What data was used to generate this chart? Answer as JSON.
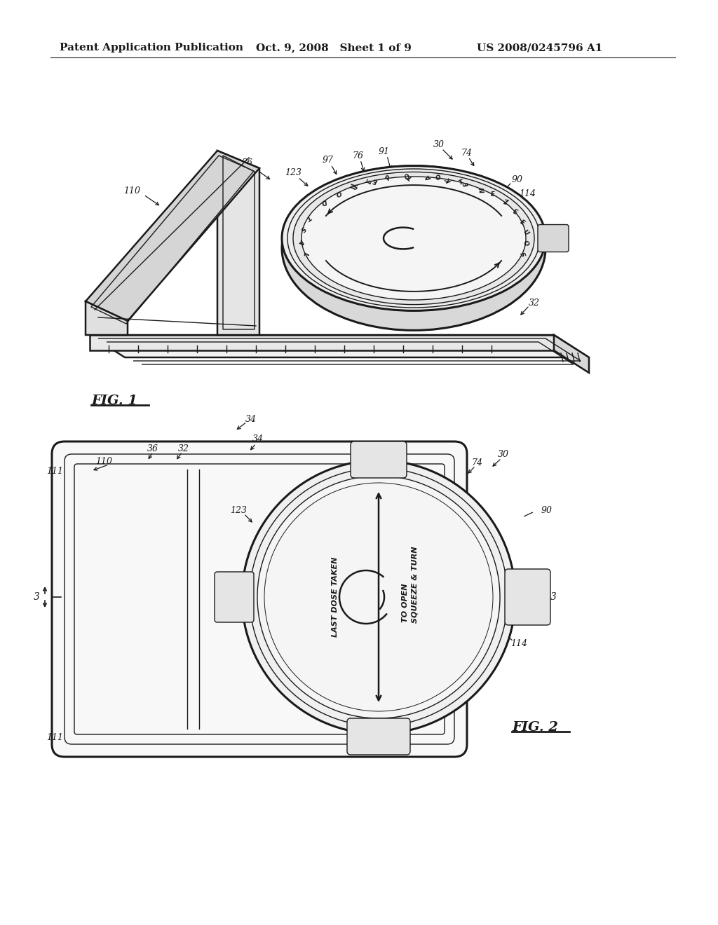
{
  "bg_color": "#ffffff",
  "line_color": "#1a1a1a",
  "header_left": "Patent Application Publication",
  "header_mid": "Oct. 9, 2008   Sheet 1 of 9",
  "header_right": "US 2008/0245796 A1",
  "fig1_label": "FIG. 1",
  "fig2_label": "FIG. 2",
  "header_fontsize": 11,
  "ref_fontsize": 9,
  "fig_label_fontsize": 14
}
